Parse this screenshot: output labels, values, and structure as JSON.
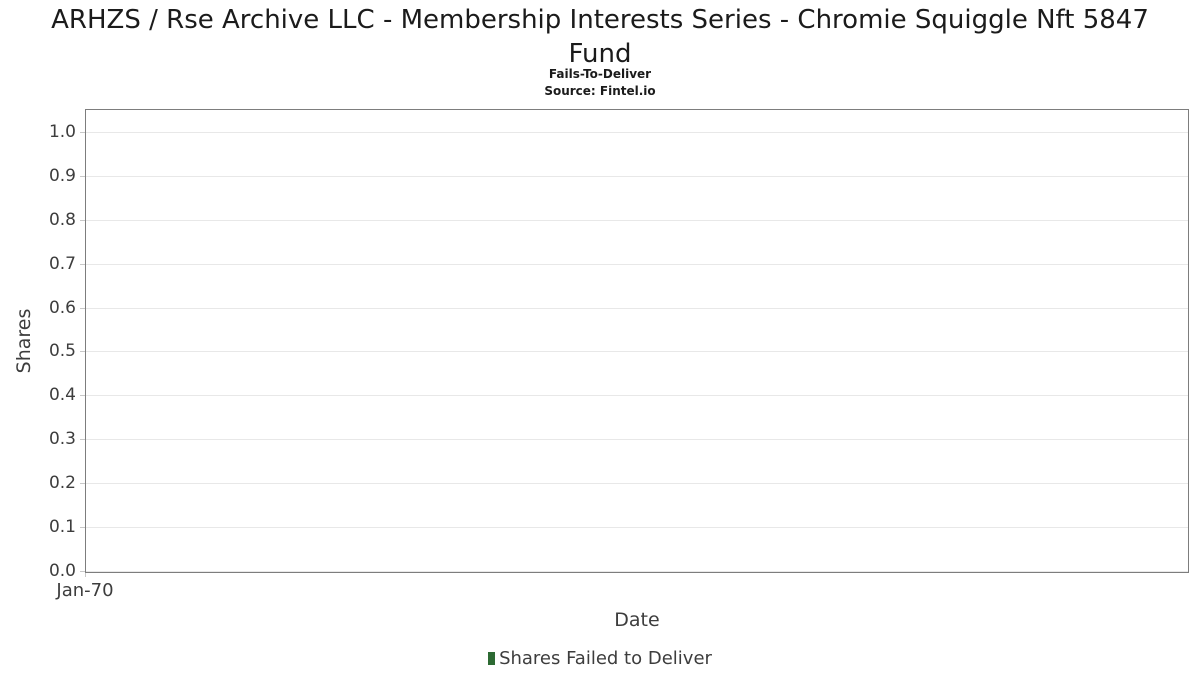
{
  "header": {
    "title": "ARHZS / Rse Archive LLC - Membership Interests Series - Chromie Squiggle Nft 5847 Fund",
    "subtitle": "Fails-To-Deliver",
    "source": "Source: Fintel.io"
  },
  "chart_data": {
    "type": "bar",
    "title": "ARHZS / Rse Archive LLC - Membership Interests Series - Chromie Squiggle Nft 5847 Fund",
    "subtitle": "Fails-To-Deliver",
    "source": "Source: Fintel.io",
    "xlabel": "Date",
    "ylabel": "Shares",
    "ylim": [
      0,
      1.05
    ],
    "y_tick_labels": [
      "0.0",
      "0.1",
      "0.2",
      "0.3",
      "0.4",
      "0.5",
      "0.6",
      "0.7",
      "0.8",
      "0.9",
      "1.0"
    ],
    "x_tick_labels": [
      "Jan-70"
    ],
    "grid": "horizontal",
    "legend_position": "bottom-center",
    "series": [
      {
        "name": "Shares Failed to Deliver",
        "color": "#2d6a33",
        "x": [],
        "values": []
      }
    ]
  },
  "colors": {
    "series_green": "#2d6a33",
    "gridline": "#e8e8e8",
    "plot_border": "#7d7d7d",
    "axis_text": "#3d3d3d",
    "title_text": "#1b1b1b"
  }
}
